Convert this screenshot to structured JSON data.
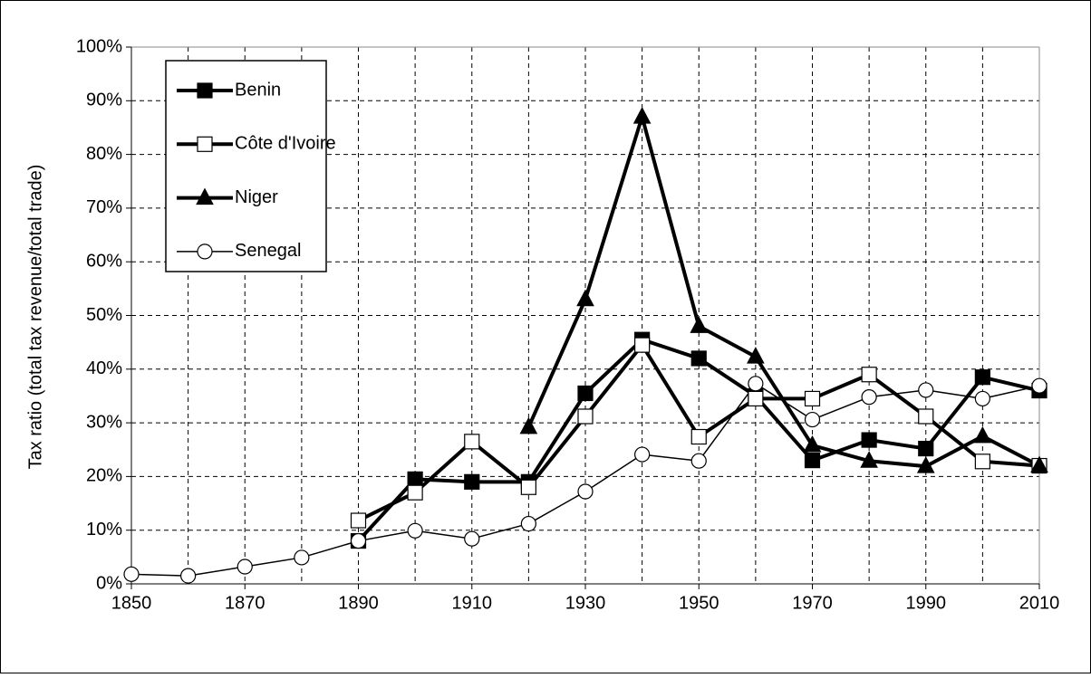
{
  "chart_data": {
    "type": "line",
    "y_label": "Tax ratio (total tax revenue/total trade)",
    "x": [
      1850,
      1860,
      1870,
      1880,
      1890,
      1900,
      1910,
      1920,
      1930,
      1940,
      1950,
      1960,
      1970,
      1980,
      1990,
      2000,
      2010
    ],
    "series": [
      {
        "name": "Benin",
        "color": "#000000",
        "marker": "square-filled",
        "values": [
          null,
          null,
          null,
          null,
          8,
          19.5,
          19,
          19,
          35.5,
          45.5,
          42,
          35,
          23,
          26.8,
          25.2,
          38.5,
          36
        ]
      },
      {
        "name": "Côte d'Ivoire",
        "color": "#000000",
        "marker": "square-open",
        "values": [
          null,
          null,
          null,
          null,
          11.8,
          17,
          26.5,
          18,
          31.2,
          44.5,
          27.4,
          34.5,
          34.5,
          39,
          31.2,
          22.8,
          22
        ]
      },
      {
        "name": "Niger",
        "color": "#000000",
        "marker": "triangle-filled",
        "values": [
          null,
          null,
          null,
          null,
          null,
          null,
          null,
          29.2,
          53,
          87,
          48,
          42.3,
          25.8,
          22.9,
          21.9,
          27.5,
          22
        ]
      },
      {
        "name": "Senegal",
        "color": "#000000",
        "marker": "circle-open",
        "values": [
          1.8,
          1.5,
          3.2,
          4.9,
          8,
          9.9,
          8.4,
          11.2,
          17.2,
          24.1,
          22.9,
          37.3,
          30.6,
          34.8,
          36.1,
          34.5,
          36.9
        ]
      }
    ],
    "xlim": [
      1850,
      2010
    ],
    "xticks": [
      1850,
      1870,
      1890,
      1910,
      1930,
      1950,
      1970,
      1990,
      2010
    ],
    "xgrid": [
      1860,
      1870,
      1880,
      1890,
      1900,
      1910,
      1920,
      1930,
      1940,
      1950,
      1960,
      1970,
      1980,
      1990,
      2000
    ],
    "ylim": [
      0,
      100
    ],
    "yticks": [
      {
        "value": 0,
        "label": "0%"
      },
      {
        "value": 10,
        "label": "10%"
      },
      {
        "value": 20,
        "label": "20%"
      },
      {
        "value": 30,
        "label": "30%"
      },
      {
        "value": 40,
        "label": "40%"
      },
      {
        "value": 50,
        "label": "50%"
      },
      {
        "value": 60,
        "label": "60%"
      },
      {
        "value": 70,
        "label": "70%"
      },
      {
        "value": 80,
        "label": "80%"
      },
      {
        "value": 90,
        "label": "90%"
      },
      {
        "value": 100,
        "label": "100%"
      }
    ],
    "grid": true,
    "legend": "upper left"
  }
}
